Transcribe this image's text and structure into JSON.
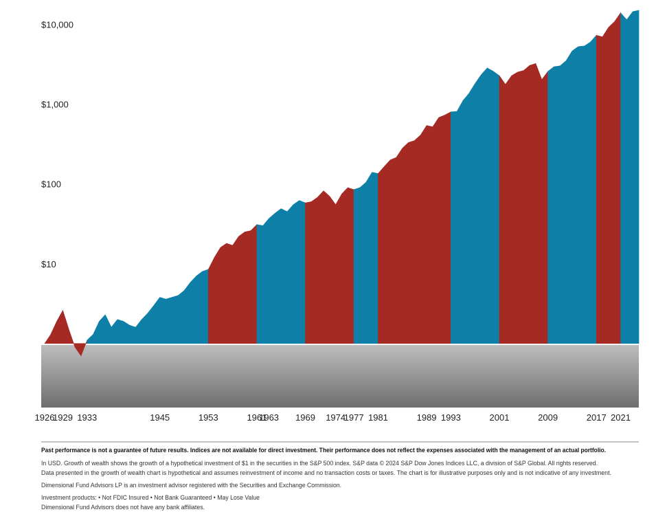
{
  "chart_data": {
    "type": "area",
    "log_scale": true,
    "grid": false,
    "baseline": 1,
    "xlim": [
      1926,
      2024
    ],
    "ylim": [
      0.55,
      15000
    ],
    "xticks": [
      1926,
      1929,
      1933,
      1945,
      1953,
      1961,
      1963,
      1969,
      1974,
      1977,
      1981,
      1989,
      1993,
      2001,
      2009,
      2017,
      2021
    ],
    "yticks": [
      {
        "value": 10,
        "label": "$10"
      },
      {
        "value": 100,
        "label": "$100"
      },
      {
        "value": 1000,
        "label": "$1,000"
      },
      {
        "value": 10000,
        "label": "$10,000"
      }
    ],
    "series": [
      {
        "color": "#a62a24",
        "x": [
          1926,
          1927,
          1928,
          1929
        ],
        "values": [
          1,
          1.3,
          1.9,
          2.6
        ]
      },
      {
        "color": "#a62a24",
        "x": [
          1929,
          1930,
          1931,
          1932,
          1933
        ],
        "values": [
          2.6,
          1.5,
          0.9,
          0.7,
          1.1
        ]
      },
      {
        "color": "#0e7fa6",
        "x": [
          1933,
          1934,
          1935,
          1936,
          1937,
          1938,
          1939,
          1940,
          1941,
          1942,
          1943,
          1944,
          1945,
          1946,
          1947,
          1948,
          1949,
          1950,
          1951,
          1952,
          1953
        ],
        "values": [
          1.1,
          1.3,
          1.9,
          2.3,
          1.6,
          2.0,
          1.9,
          1.7,
          1.6,
          2.0,
          2.4,
          3.0,
          3.8,
          3.6,
          3.8,
          4.0,
          4.6,
          5.8,
          7.0,
          8.0,
          8.5
        ]
      },
      {
        "color": "#a62a24",
        "x": [
          1953,
          1954,
          1955,
          1956,
          1957,
          1958,
          1959,
          1960,
          1961
        ],
        "values": [
          8.5,
          12,
          16,
          18,
          17,
          22,
          25,
          26,
          31
        ]
      },
      {
        "color": "#0e7fa6",
        "x": [
          1961,
          1962,
          1963,
          1964,
          1965,
          1966,
          1967,
          1968,
          1969
        ],
        "values": [
          31,
          30,
          37,
          43,
          49,
          45,
          55,
          62,
          58
        ]
      },
      {
        "color": "#a62a24",
        "x": [
          1969,
          1970,
          1971,
          1972,
          1973,
          1974,
          1975,
          1976,
          1977
        ],
        "values": [
          58,
          60,
          68,
          82,
          70,
          55,
          75,
          90,
          85
        ]
      },
      {
        "color": "#0e7fa6",
        "x": [
          1977,
          1978,
          1979,
          1980,
          1981
        ],
        "values": [
          85,
          90,
          105,
          140,
          135
        ]
      },
      {
        "color": "#a62a24",
        "x": [
          1981,
          1982,
          1983,
          1984,
          1985,
          1986,
          1987,
          1988,
          1989,
          1990,
          1991,
          1992,
          1993
        ],
        "values": [
          135,
          165,
          200,
          215,
          280,
          330,
          350,
          410,
          540,
          520,
          680,
          730,
          800
        ]
      },
      {
        "color": "#0e7fa6",
        "x": [
          1993,
          1994,
          1995,
          1996,
          1997,
          1998,
          1999,
          2000,
          2001
        ],
        "values": [
          800,
          810,
          1110,
          1370,
          1820,
          2340,
          2840,
          2580,
          2270
        ]
      },
      {
        "color": "#a62a24",
        "x": [
          2001,
          2002,
          2003,
          2004,
          2005,
          2006,
          2007,
          2008,
          2009
        ],
        "values": [
          2270,
          1770,
          2270,
          2520,
          2640,
          3060,
          3230,
          2030,
          2570
        ]
      },
      {
        "color": "#0e7fa6",
        "x": [
          2009,
          2010,
          2011,
          2012,
          2013,
          2014,
          2015,
          2016,
          2017
        ],
        "values": [
          2570,
          2950,
          3020,
          3500,
          4640,
          5270,
          5350,
          5990,
          7300
        ]
      },
      {
        "color": "#a62a24",
        "x": [
          2017,
          2018,
          2019,
          2020,
          2021
        ],
        "values": [
          7300,
          6970,
          9170,
          10850,
          13960
        ]
      },
      {
        "color": "#0e7fa6",
        "x": [
          2021,
          2022,
          2023,
          2024
        ],
        "values": [
          13960,
          11430,
          14440,
          15000
        ]
      }
    ]
  },
  "footnotes": [
    "Past performance is not a guarantee of future results. Indices are not available for direct investment. Their performance does not reflect the expenses associated with the management of an actual portfolio.",
    "In USD. Growth of wealth shows the growth of a hypothetical investment of $1 in the securities in the S&P 500 index. S&P data © 2024 S&P Dow Jones Indices LLC, a division of S&P Global. All rights reserved.",
    "Data presented in the growth of wealth chart is hypothetical and assumes reinvestment of income and no transaction costs or taxes. The chart is for illustrative purposes only and is not indicative of any investment.",
    "Dimensional Fund Advisors LP is an investment advisor registered with the Securities and Exchange Commission.",
    "Investment products: • Not FDIC Insured • Not Bank Guaranteed • May Lose Value",
    "Dimensional Fund Advisors does not have any bank affiliates."
  ]
}
